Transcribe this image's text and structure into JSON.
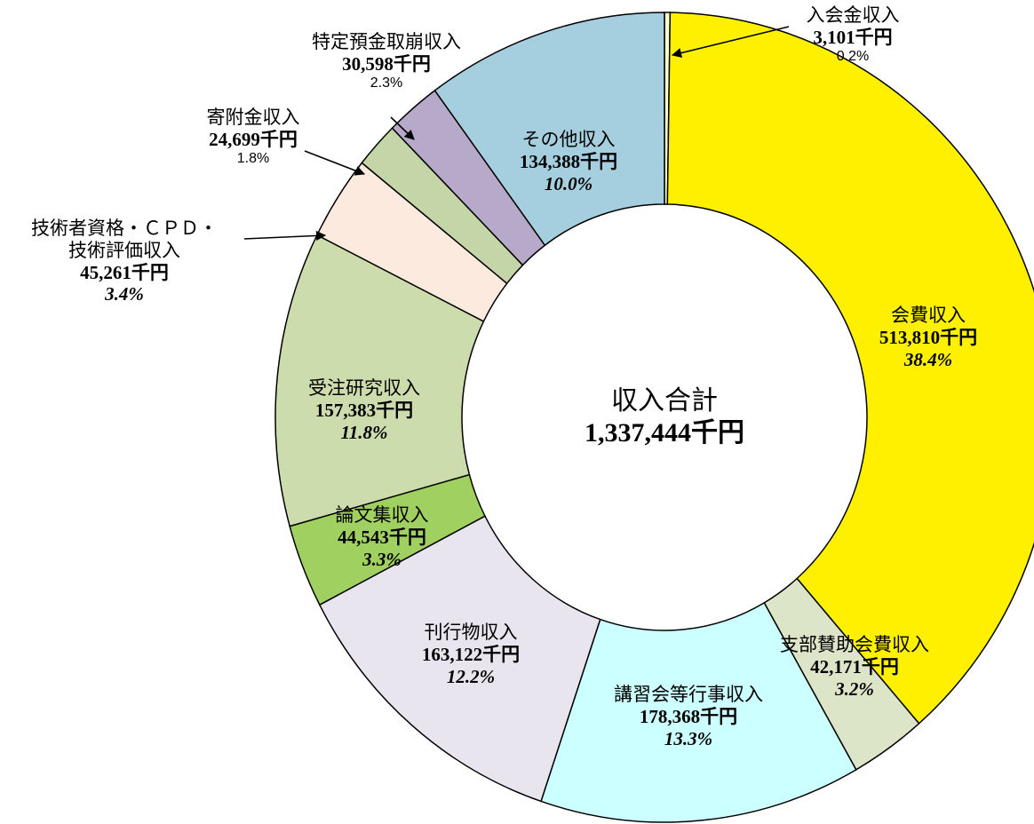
{
  "chart_data": {
    "type": "donut",
    "center_title": "収入合計",
    "center_total": 1337444,
    "center_total_label": "1,337,444千円",
    "categories": [
      "入会金収入",
      "会費収入",
      "支部賛助会費収入",
      "講習会等行事収入",
      "刊行物収入",
      "論文集収入",
      "受注研究収入",
      "技術者資格・ＣＰＤ・\n技術評価収入",
      "寄附金収入",
      "特定預金取崩収入",
      "その他収入"
    ],
    "values": [
      3101,
      513810,
      42171,
      178368,
      163122,
      44543,
      157383,
      45261,
      24699,
      30598,
      134388
    ],
    "value_labels": [
      "3,101千円",
      "513,810千円",
      "42,171千円",
      "178,368千円",
      "163,122千円",
      "44,543千円",
      "157,383千円",
      "45,261千円",
      "24,699千円",
      "30,598千円",
      "134,388千円"
    ],
    "percentages": [
      0.2,
      38.4,
      3.2,
      13.3,
      12.2,
      3.3,
      11.8,
      3.4,
      1.8,
      2.3,
      10.0
    ],
    "percentage_labels": [
      "0.2%",
      "38.4%",
      "3.2%",
      "13.3%",
      "12.2%",
      "3.3%",
      "11.8%",
      "3.4%",
      "1.8%",
      "2.3%",
      "10.0%"
    ],
    "colors": [
      "#ffffcc",
      "#fff000",
      "#dde5c8",
      "#ccffff",
      "#e9e5ef",
      "#9fd060",
      "#ccdcac",
      "#fdeadf",
      "#c4d6a8",
      "#b7a9c9",
      "#a5cfde"
    ]
  }
}
